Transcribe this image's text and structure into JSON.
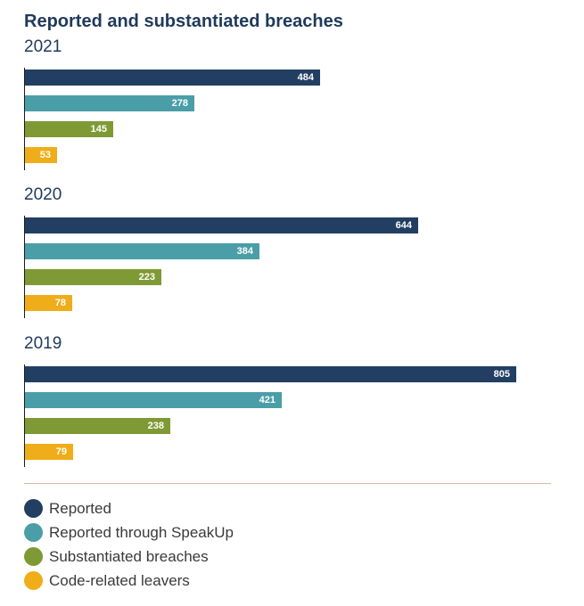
{
  "title": "Reported and substantiated breaches",
  "chart_data": {
    "type": "bar",
    "orientation": "horizontal",
    "title": "Reported and substantiated breaches",
    "xlabel": "",
    "ylabel": "",
    "xlim": [
      0,
      900
    ],
    "grid": false,
    "legend_position": "bottom",
    "series_names": [
      "Reported",
      "Reported through SpeakUp",
      "Substantiated breaches",
      "Code-related leavers"
    ],
    "series_colors": [
      "#223f63",
      "#4a9ea8",
      "#7f9a34",
      "#f0ad1a"
    ],
    "groups": [
      {
        "year": "2021",
        "values": [
          484,
          278,
          145,
          53
        ]
      },
      {
        "year": "2020",
        "values": [
          644,
          384,
          223,
          78
        ]
      },
      {
        "year": "2019",
        "values": [
          805,
          421,
          238,
          79
        ]
      }
    ]
  },
  "legend": {
    "items": [
      {
        "label": "Reported",
        "color": "#223f63"
      },
      {
        "label": "Reported through SpeakUp",
        "color": "#4a9ea8"
      },
      {
        "label": "Substantiated breaches",
        "color": "#7f9a34"
      },
      {
        "label": "Code-related leavers",
        "color": "#f0ad1a"
      }
    ]
  }
}
